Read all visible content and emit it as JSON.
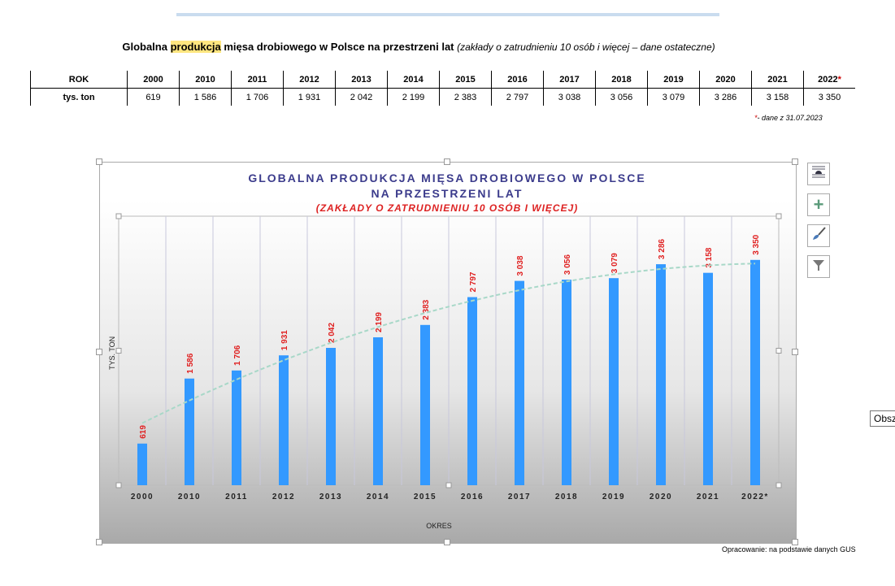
{
  "header": {
    "title_pre": "Globalna ",
    "title_hl": "produkcja",
    "title_post": " mięsa drobiowego w Polsce na przestrzeni lat ",
    "title_note": "(zakłady o zatrudnieniu 10 osób i więcej – dane ostateczne)"
  },
  "table": {
    "row1_label": "ROK",
    "row2_label": "tys. ton",
    "years": [
      "2000",
      "2010",
      "2011",
      "2012",
      "2013",
      "2014",
      "2015",
      "2016",
      "2017",
      "2018",
      "2019",
      "2020",
      "2021",
      "2022"
    ],
    "values": [
      "619",
      "1 586",
      "1 706",
      "1 931",
      "2 042",
      "2 199",
      "2 383",
      "2 797",
      "3 038",
      "3 056",
      "3 079",
      "3 286",
      "3 158",
      "3 350"
    ],
    "star": "*",
    "footnote_star": "*",
    "footnote": "- dane z 31.07.2023"
  },
  "chart_data": {
    "type": "bar",
    "title": "GLOBALNA PRODUKCJA MIĘSA DROBIOWEGO W POLSCE",
    "title2": "NA PRZESTRZENI LAT",
    "subtitle": "(ZAKŁADY O ZATRUDNIENIU 10 OSÓB I WIĘCEJ)",
    "xlabel": "OKRES",
    "ylabel": "TYS. TON",
    "categories": [
      "2000",
      "2010",
      "2011",
      "2012",
      "2013",
      "2014",
      "2015",
      "2016",
      "2017",
      "2018",
      "2019",
      "2020",
      "2021",
      "2022*"
    ],
    "values": [
      619,
      1586,
      1706,
      1931,
      2042,
      2199,
      2383,
      2797,
      3038,
      3056,
      3079,
      3286,
      3158,
      3350
    ],
    "labels": [
      "619",
      "1 586",
      "1 706",
      "1 931",
      "2 042",
      "2 199",
      "2 383",
      "2 797",
      "3 038",
      "3 056",
      "3 079",
      "3 286",
      "3 158",
      "3 350"
    ],
    "ylim": [
      0,
      4000
    ],
    "trendline": "polynomial",
    "grid": "vertical",
    "colors": {
      "bar": "#3399ff",
      "label": "#e02020",
      "trend": "#a8d8c8"
    }
  },
  "tooltip": "Obsz",
  "source": "Opracowanie: na podstawie danych GUS"
}
